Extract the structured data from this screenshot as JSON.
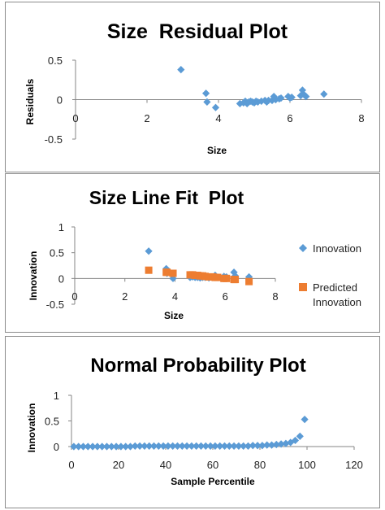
{
  "colors": {
    "innovation": "#5b9bd5",
    "predicted": "#ed7d31",
    "axis": "#868686"
  },
  "chart_data": [
    {
      "type": "scatter",
      "title": "Size  Residual Plot",
      "xlabel": "Size",
      "ylabel": "Residuals",
      "xlim": [
        0,
        8
      ],
      "ylim": [
        -0.5,
        0.5
      ],
      "xticks": [
        "0",
        "2",
        "4",
        "6",
        "8"
      ],
      "yticks": [
        "0.5",
        "0",
        "-0.5"
      ],
      "grid": false,
      "series": [
        {
          "points": [
            [
              2.95,
              0.38
            ],
            [
              3.65,
              0.08
            ],
            [
              3.68,
              -0.03
            ],
            [
              3.92,
              -0.1
            ],
            [
              4.6,
              -0.05
            ],
            [
              4.7,
              -0.04
            ],
            [
              4.75,
              -0.02
            ],
            [
              4.8,
              -0.05
            ],
            [
              4.85,
              -0.03
            ],
            [
              4.9,
              -0.02
            ],
            [
              4.95,
              -0.03
            ],
            [
              5.0,
              -0.04
            ],
            [
              5.05,
              -0.02
            ],
            [
              5.1,
              -0.03
            ],
            [
              5.2,
              -0.02
            ],
            [
              5.3,
              -0.01
            ],
            [
              5.35,
              -0.03
            ],
            [
              5.4,
              -0.01
            ],
            [
              5.5,
              -0.01
            ],
            [
              5.55,
              0.04
            ],
            [
              5.6,
              0.0
            ],
            [
              5.7,
              0.01
            ],
            [
              5.75,
              0.02
            ],
            [
              5.95,
              0.04
            ],
            [
              6.0,
              0.02
            ],
            [
              6.05,
              0.03
            ],
            [
              6.3,
              0.05
            ],
            [
              6.35,
              0.12
            ],
            [
              6.4,
              0.06
            ],
            [
              6.45,
              0.04
            ],
            [
              6.95,
              0.07
            ]
          ]
        }
      ]
    },
    {
      "type": "scatter",
      "title": "Size Line Fit  Plot",
      "xlabel": "Size",
      "ylabel": "Innovation",
      "xlim": [
        0,
        8
      ],
      "ylim": [
        -0.5,
        1
      ],
      "xticks": [
        "0",
        "2",
        "4",
        "6",
        "8"
      ],
      "yticks": [
        "1",
        "0.5",
        "0",
        "-0.5"
      ],
      "legend": "right",
      "series": [
        {
          "name": "Innovation",
          "marker": "diamond",
          "points": [
            [
              2.95,
              0.53
            ],
            [
              3.65,
              0.19
            ],
            [
              3.68,
              0.1
            ],
            [
              3.92,
              0.0
            ],
            [
              4.6,
              0.02
            ],
            [
              4.7,
              0.03
            ],
            [
              4.8,
              0.02
            ],
            [
              4.9,
              0.02
            ],
            [
              5.0,
              0.01
            ],
            [
              5.1,
              0.02
            ],
            [
              5.2,
              0.02
            ],
            [
              5.35,
              0.01
            ],
            [
              5.5,
              0.02
            ],
            [
              5.6,
              0.06
            ],
            [
              5.7,
              0.02
            ],
            [
              5.95,
              0.04
            ],
            [
              6.05,
              0.03
            ],
            [
              6.35,
              0.12
            ],
            [
              6.4,
              0.05
            ],
            [
              6.95,
              0.03
            ]
          ]
        },
        {
          "name": "Predicted\nInnovation",
          "marker": "square",
          "points": [
            [
              2.95,
              0.16
            ],
            [
              3.65,
              0.12
            ],
            [
              3.68,
              0.12
            ],
            [
              3.92,
              0.1
            ],
            [
              4.6,
              0.07
            ],
            [
              4.7,
              0.07
            ],
            [
              4.8,
              0.06
            ],
            [
              4.9,
              0.06
            ],
            [
              5.0,
              0.05
            ],
            [
              5.1,
              0.05
            ],
            [
              5.2,
              0.04
            ],
            [
              5.35,
              0.03
            ],
            [
              5.5,
              0.03
            ],
            [
              5.6,
              0.02
            ],
            [
              5.7,
              0.02
            ],
            [
              5.95,
              0.0
            ],
            [
              6.05,
              0.0
            ],
            [
              6.35,
              -0.02
            ],
            [
              6.4,
              -0.02
            ],
            [
              6.95,
              -0.06
            ]
          ]
        }
      ]
    },
    {
      "type": "scatter",
      "title": "Normal Probability Plot",
      "xlabel": "Sample Percentile",
      "ylabel": "Innovation",
      "xlim": [
        0,
        120
      ],
      "ylim": [
        0,
        1
      ],
      "xticks": [
        "0",
        "20",
        "40",
        "60",
        "80",
        "100",
        "120"
      ],
      "yticks": [
        "1",
        "0.5",
        "0"
      ],
      "series": [
        {
          "points": [
            [
              1,
              0.0
            ],
            [
              3,
              0.0
            ],
            [
              5,
              0.0
            ],
            [
              7,
              0.0
            ],
            [
              9,
              0.0
            ],
            [
              11,
              0.0
            ],
            [
              13,
              0.0
            ],
            [
              15,
              0.0
            ],
            [
              17,
              0.0
            ],
            [
              19,
              0.0
            ],
            [
              21,
              0.0
            ],
            [
              23,
              0.0
            ],
            [
              25,
              0.0
            ],
            [
              27,
              0.01
            ],
            [
              29,
              0.01
            ],
            [
              31,
              0.01
            ],
            [
              33,
              0.01
            ],
            [
              35,
              0.01
            ],
            [
              37,
              0.01
            ],
            [
              39,
              0.01
            ],
            [
              41,
              0.01
            ],
            [
              43,
              0.01
            ],
            [
              45,
              0.01
            ],
            [
              47,
              0.01
            ],
            [
              49,
              0.01
            ],
            [
              51,
              0.01
            ],
            [
              53,
              0.01
            ],
            [
              55,
              0.01
            ],
            [
              57,
              0.01
            ],
            [
              59,
              0.01
            ],
            [
              61,
              0.01
            ],
            [
              63,
              0.01
            ],
            [
              65,
              0.01
            ],
            [
              67,
              0.01
            ],
            [
              69,
              0.01
            ],
            [
              71,
              0.01
            ],
            [
              73,
              0.01
            ],
            [
              75,
              0.01
            ],
            [
              77,
              0.02
            ],
            [
              79,
              0.02
            ],
            [
              81,
              0.02
            ],
            [
              83,
              0.03
            ],
            [
              85,
              0.03
            ],
            [
              87,
              0.04
            ],
            [
              89,
              0.05
            ],
            [
              91,
              0.06
            ],
            [
              93,
              0.08
            ],
            [
              95,
              0.12
            ],
            [
              97,
              0.2
            ],
            [
              99,
              0.53
            ]
          ]
        }
      ]
    }
  ]
}
